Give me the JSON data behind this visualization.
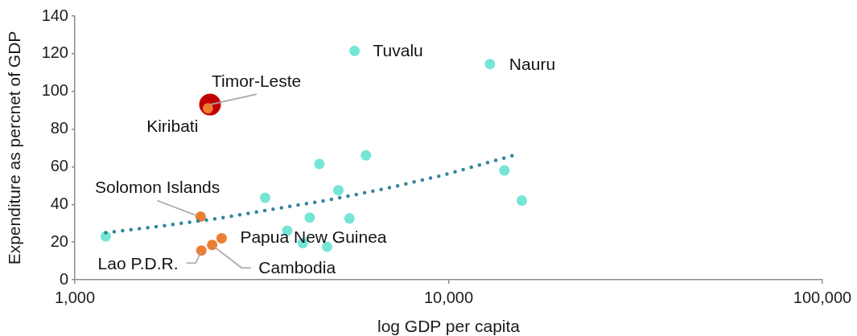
{
  "chart_data": {
    "type": "scatter",
    "xlabel": "log GDP per capita",
    "ylabel": "Expenditure as percnet of GDP",
    "log": "x",
    "xlim": [
      1000,
      100000
    ],
    "xticks": [
      {
        "value": 1000,
        "label": "1,000"
      },
      {
        "value": 10000,
        "label": "10,000"
      },
      {
        "value": 100000,
        "label": "100,000"
      }
    ],
    "ylim": [
      0,
      140
    ],
    "yticks": [
      0,
      20,
      40,
      60,
      80,
      100,
      120,
      140
    ],
    "grid": false,
    "legend": false,
    "marker": "circle",
    "series": [
      {
        "color": "#75e5d5",
        "x": [
          1210,
          3230,
          3700,
          4070,
          4250,
          4510,
          4730,
          5070,
          5430,
          5600,
          6010,
          12900,
          14100,
          15700
        ],
        "values": [
          23,
          43.5,
          26,
          19.5,
          33,
          61.5,
          17.5,
          47.5,
          32.5,
          121.5,
          66,
          114.5,
          58,
          42
        ]
      },
      {
        "color": "#c00000",
        "x": [
          2300
        ],
        "values": [
          93
        ]
      },
      {
        "color": "#ed7d31",
        "x": [
          2270,
          2170,
          2180,
          2330,
          2470
        ],
        "values": [
          91,
          33.5,
          15.5,
          18.5,
          22
        ]
      },
      {
        "type": "line",
        "color": "#31849b",
        "line_style": "dotted",
        "marker": "none",
        "x": [
          1210,
          1700,
          2410,
          3410,
          4820,
          6820,
          9660,
          15200
        ],
        "values": [
          25,
          28.5,
          32.5,
          37.5,
          42.5,
          48.5,
          55.5,
          66.5
        ]
      }
    ],
    "annotations": [
      {
        "text": "Tuvalu",
        "x": 5600,
        "y": 121.5
      },
      {
        "text": "Nauru",
        "x": 12900,
        "y": 114.5
      },
      {
        "text": "Timor-Leste",
        "x": 2300,
        "y": 93
      },
      {
        "text": "Kiribati",
        "x": 2270,
        "y": 91
      },
      {
        "text": "Solomon Islands",
        "x": 2170,
        "y": 33.5
      },
      {
        "text": "Papua New Guinea",
        "x": 2470,
        "y": 22
      },
      {
        "text": "Lao P.D.R.",
        "x": 2180,
        "y": 15.5
      },
      {
        "text": "Cambodia",
        "x": 2330,
        "y": 18.5
      }
    ]
  }
}
